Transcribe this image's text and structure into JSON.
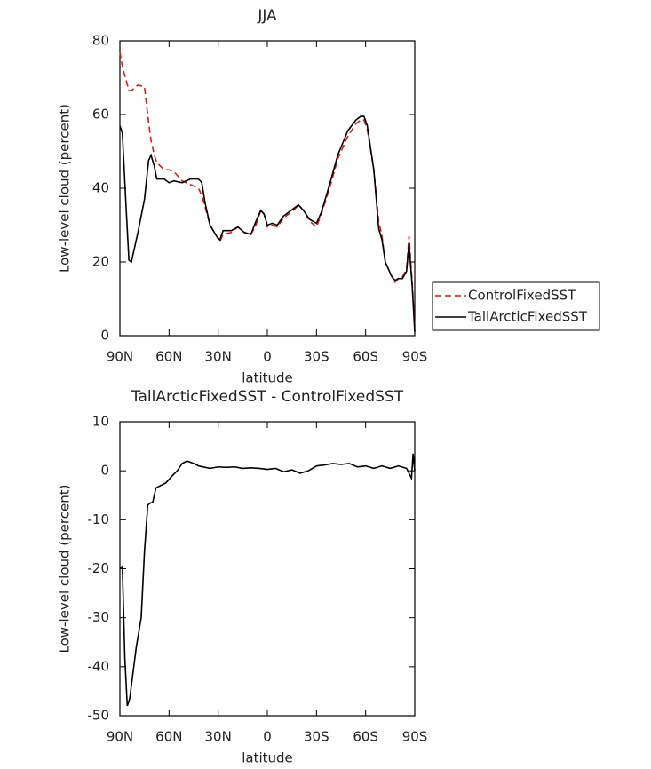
{
  "chart_data": [
    {
      "type": "line",
      "title": "JJA",
      "xlabel": "latitude",
      "ylabel": "Low-level cloud (percent)",
      "xlim": [
        90,
        -90
      ],
      "xticks": [
        {
          "value": 90,
          "label": "90N"
        },
        {
          "value": 60,
          "label": "60N"
        },
        {
          "value": 30,
          "label": "30N"
        },
        0,
        {
          "value": -30,
          "label": "30S"
        },
        {
          "value": -60,
          "label": "60S"
        },
        {
          "value": -90,
          "label": "90S"
        }
      ],
      "ylim": [
        0,
        80
      ],
      "yticks": [
        0,
        20,
        40,
        60,
        80
      ],
      "legend": "right",
      "x": [
        90,
        88.5,
        86,
        84.5,
        83,
        79,
        75,
        72.5,
        71,
        69,
        67.5,
        63,
        60,
        57,
        52,
        47,
        42,
        40,
        38,
        35,
        31,
        29,
        27,
        22,
        18,
        14,
        10,
        7,
        4,
        2,
        0,
        -3,
        -6,
        -10,
        -16,
        -19,
        -22,
        -26,
        -30,
        -33,
        -38,
        -43,
        -49,
        -54,
        -57,
        -59,
        -61,
        -65,
        -68,
        -70,
        -72,
        -76,
        -78,
        -80,
        -82.5,
        -85,
        -86.5,
        -88.5,
        -90
      ],
      "series": [
        {
          "name": "ControlFixedSST",
          "color": "#e0191b",
          "style": "dashed",
          "values": [
            77,
            73,
            69,
            66.5,
            66.5,
            68,
            67.5,
            58,
            53,
            49,
            47,
            45,
            45,
            44.5,
            42,
            41,
            40,
            38,
            35,
            30,
            27,
            25.5,
            27.5,
            28,
            29.5,
            28,
            27.5,
            30,
            34,
            33,
            29.5,
            30,
            29.5,
            32,
            34,
            35.5,
            34,
            31,
            29.5,
            33,
            40,
            48,
            54,
            57.5,
            58.5,
            58.5,
            56,
            45,
            31,
            27,
            20,
            16,
            14.5,
            15.5,
            16,
            18,
            27,
            14,
            2
          ]
        },
        {
          "name": "TallArcticFixedSST",
          "color": "#000000",
          "style": "solid",
          "values": [
            57,
            55,
            33,
            20.5,
            20,
            28,
            37,
            47.5,
            49,
            46,
            42.5,
            42.5,
            41.5,
            42,
            41.5,
            42.5,
            42.5,
            41.5,
            36,
            30,
            27,
            26,
            28.5,
            28.5,
            29.5,
            28,
            27.5,
            31,
            34,
            33,
            30,
            30.5,
            30,
            32.5,
            34.5,
            35.5,
            34,
            31.5,
            30.5,
            33.5,
            41,
            49,
            55.5,
            58.5,
            59.5,
            59.5,
            57,
            45,
            29,
            26,
            20,
            16,
            15,
            15.5,
            15.5,
            17.5,
            25,
            13,
            1
          ]
        }
      ]
    },
    {
      "type": "line",
      "title": "TallArcticFixedSST - ControlFixedSST",
      "xlabel": "latitude",
      "ylabel": "Low-level cloud (percent)",
      "xlim": [
        90,
        -90
      ],
      "xticks": [
        {
          "value": 90,
          "label": "90N"
        },
        {
          "value": 60,
          "label": "60N"
        },
        {
          "value": 30,
          "label": "30N"
        },
        0,
        {
          "value": -30,
          "label": "30S"
        },
        {
          "value": -60,
          "label": "60S"
        },
        {
          "value": -90,
          "label": "90S"
        }
      ],
      "ylim": [
        -50,
        10
      ],
      "yticks": [
        -50,
        -40,
        -30,
        -20,
        -10,
        0,
        10
      ],
      "x": [
        90,
        88.5,
        87,
        85.5,
        84,
        80,
        77,
        75,
        73,
        71,
        70,
        68,
        65,
        62,
        58,
        55,
        52,
        49,
        45,
        42,
        35,
        30,
        25,
        20,
        15,
        10,
        5,
        0,
        -5,
        -10,
        -15,
        -20,
        -25,
        -30,
        -35,
        -40,
        -45,
        -50,
        -55,
        -60,
        -65,
        -70,
        -75,
        -80,
        -85,
        -88,
        -89,
        -90
      ],
      "series": [
        {
          "color": "#000000",
          "style": "solid",
          "values": [
            -20,
            -19.5,
            -38,
            -48,
            -46.5,
            -36,
            -30,
            -16.5,
            -7,
            -6.5,
            -6.5,
            -3.5,
            -3,
            -2.5,
            -1,
            0,
            1.5,
            2,
            1.5,
            1,
            0.5,
            0.8,
            0.7,
            0.8,
            0.5,
            0.6,
            0.5,
            0.3,
            0.5,
            -0.2,
            0.2,
            -0.5,
            0,
            1,
            1.2,
            1.5,
            1.3,
            1.5,
            0.8,
            1,
            0.5,
            1,
            0.5,
            1,
            0.5,
            -1.5,
            3.5,
            0
          ]
        }
      ]
    }
  ]
}
